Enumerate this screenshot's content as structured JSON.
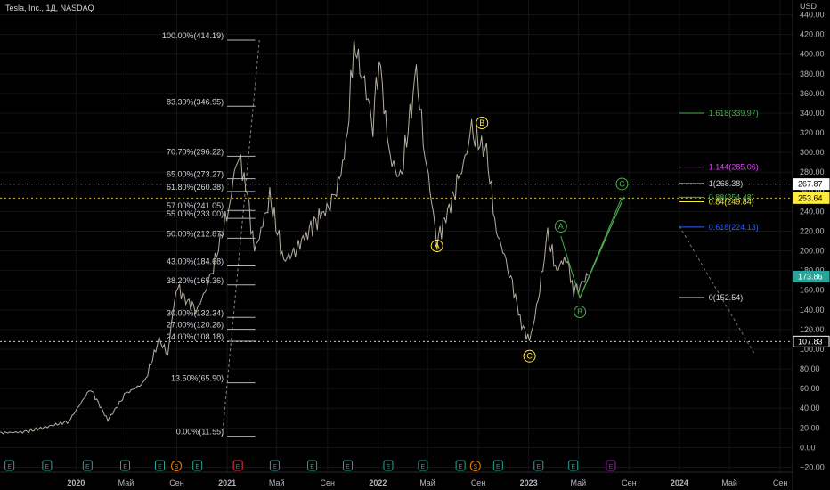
{
  "header": {
    "title": "Tesla, Inc., 1Д, NASDAQ"
  },
  "chart_data": {
    "type": "line",
    "title": "Tesla, Inc., 1Д, NASDAQ",
    "currency_label": "USD",
    "ylim": [
      -25,
      455
    ],
    "y_ticks": [
      -20,
      0,
      20,
      40,
      60,
      80,
      100,
      120,
      140,
      160,
      180,
      200,
      220,
      240,
      260,
      280,
      300,
      320,
      340,
      360,
      380,
      400,
      420,
      440
    ],
    "y_tick_labels": [
      "−20.00",
      "0.00",
      "20.00",
      "40.00",
      "60.00",
      "80.00",
      "100.00",
      "120.00",
      "140.00",
      "160.00",
      "180.00",
      "200.00",
      "220.00",
      "240.00",
      "260.00",
      "280.00",
      "300.00",
      "320.00",
      "340.00",
      "360.00",
      "380.00",
      "400.00",
      "420.00",
      "440.00"
    ],
    "x_range": [
      "2019-07-01",
      "2024-10-01"
    ],
    "x_ticks": [
      {
        "date": "2020-01-01",
        "label": "2020",
        "bold": true
      },
      {
        "date": "2020-05-01",
        "label": "Май",
        "bold": false
      },
      {
        "date": "2020-09-01",
        "label": "Сен",
        "bold": false
      },
      {
        "date": "2021-01-01",
        "label": "2021",
        "bold": true
      },
      {
        "date": "2021-05-01",
        "label": "Май",
        "bold": false
      },
      {
        "date": "2021-09-01",
        "label": "Сен",
        "bold": false
      },
      {
        "date": "2022-01-01",
        "label": "2022",
        "bold": true
      },
      {
        "date": "2022-05-01",
        "label": "Май",
        "bold": false
      },
      {
        "date": "2022-09-01",
        "label": "Сен",
        "bold": false
      },
      {
        "date": "2023-01-01",
        "label": "2023",
        "bold": true
      },
      {
        "date": "2023-05-01",
        "label": "Май",
        "bold": false
      },
      {
        "date": "2023-09-01",
        "label": "Сен",
        "bold": false
      },
      {
        "date": "2024-01-01",
        "label": "2024",
        "bold": true
      },
      {
        "date": "2024-05-01",
        "label": "Май",
        "bold": false
      },
      {
        "date": "2024-09-01",
        "label": "Сен",
        "bold": false
      }
    ],
    "grid": true,
    "series": [
      {
        "x": [
          "2019-07-01",
          "2019-09-01",
          "2019-11-01",
          "2019-12-15",
          "2020-02-05",
          "2020-03-18",
          "2020-05-01",
          "2020-06-15",
          "2020-07-20",
          "2020-08-10",
          "2020-08-31",
          "2020-09-23",
          "2020-10-20",
          "2020-11-20",
          "2020-12-15",
          "2021-01-08",
          "2021-01-26",
          "2021-02-15",
          "2021-03-08",
          "2021-04-01",
          "2021-04-14",
          "2021-05-18",
          "2021-06-15",
          "2021-07-15",
          "2021-08-15",
          "2021-09-15",
          "2021-10-15",
          "2021-11-04",
          "2021-11-22",
          "2021-12-20",
          "2022-01-04",
          "2022-01-27",
          "2022-02-24",
          "2022-04-04",
          "2022-04-25",
          "2022-05-24",
          "2022-06-15",
          "2022-07-15",
          "2022-08-16",
          "2022-09-21",
          "2022-10-15",
          "2022-11-15",
          "2022-12-15",
          "2023-01-03",
          "2023-01-20",
          "2023-02-16",
          "2023-03-10",
          "2023-04-01",
          "2023-04-20",
          "2023-05-05",
          "2023-05-25"
        ],
        "values": [
          15,
          16,
          22,
          27,
          60,
          28,
          55,
          66,
          110,
          95,
          165,
          150,
          140,
          170,
          210,
          250,
          300,
          270,
          200,
          230,
          255,
          190,
          200,
          220,
          235,
          250,
          300,
          409,
          385,
          330,
          400,
          300,
          270,
          380,
          300,
          210,
          235,
          270,
          320,
          300,
          220,
          180,
          125,
          108,
          140,
          215,
          180,
          195,
          160,
          165,
          175
        ]
      }
    ],
    "fib_retracement": [
      {
        "label": "100.00%(414.19)",
        "value": 414.19
      },
      {
        "label": "83.30%(346.95)",
        "value": 346.95
      },
      {
        "label": "70.70%(296.22)",
        "value": 296.22
      },
      {
        "label": "65.00%(273.27)",
        "value": 273.27
      },
      {
        "label": "61.80%(260.38)",
        "value": 260.38
      },
      {
        "label": "57.00%(241.05)",
        "value": 241.05
      },
      {
        "label": "55.00%(233.00)",
        "value": 233.0
      },
      {
        "label": "50.00%(212.87)",
        "value": 212.87
      },
      {
        "label": "43.00%(184.68)",
        "value": 184.68
      },
      {
        "label": "38.20%(165.36)",
        "value": 165.36
      },
      {
        "label": "30.00%(132.34)",
        "value": 132.34
      },
      {
        "label": "27.00%(120.26)",
        "value": 120.26
      },
      {
        "label": "24.00%(108.18)",
        "value": 108.18
      },
      {
        "label": "13.50%(65.90)",
        "value": 65.9
      },
      {
        "label": "0.00%(11.55)",
        "value": 11.55
      }
    ],
    "fib_extension": [
      {
        "label": "1.618(339.97)",
        "value": 339.97,
        "color": "#4caf50"
      },
      {
        "label": "1.144(285.06)",
        "value": 285.06,
        "color": "#e040fb"
      },
      {
        "label": "1(268.38)",
        "value": 268.38,
        "color": "#d1d4dc"
      },
      {
        "label": "0.88(254.48)",
        "value": 254.48,
        "color": "#4caf50"
      },
      {
        "label": "0.84(249.84)",
        "value": 249.84,
        "color": "#ffeb3b"
      },
      {
        "label": "0.618(224.13)",
        "value": 224.13,
        "color": "#2962ff"
      },
      {
        "label": "0(152.54)",
        "value": 152.54,
        "color": "#d1d4dc"
      }
    ],
    "horizontal_lines": [
      {
        "value": 267.87,
        "label": "267.87",
        "color": "#ffffff",
        "text_color": "#000000"
      },
      {
        "value": 253.64,
        "label": "253.64",
        "color": "#ffeb3b",
        "text_color": "#000000"
      },
      {
        "value": 107.83,
        "label": "107.83",
        "color": "#ffffff",
        "text_color": "#ffffff"
      }
    ],
    "last_price": {
      "value": 173.86,
      "label": "173.86",
      "color": "#26a69a"
    },
    "wave_labels": [
      {
        "label": "A",
        "date": "2022-05-24",
        "value": 205,
        "color": "#ffeb3b"
      },
      {
        "label": "B",
        "date": "2022-09-10",
        "value": 330,
        "color": "#ffeb3b"
      },
      {
        "label": "C",
        "date": "2023-01-03",
        "value": 93,
        "color": "#ffeb3b"
      },
      {
        "label": "A",
        "date": "2023-03-20",
        "value": 225,
        "color": "#4caf50"
      },
      {
        "label": "B",
        "date": "2023-05-05",
        "value": 138,
        "color": "#4caf50"
      },
      {
        "label": "C",
        "date": "2023-08-15",
        "value": 268,
        "color": "#4caf50"
      }
    ],
    "projection": {
      "x": [
        "2023-05-05",
        "2023-08-20"
      ],
      "values": [
        152.54,
        255
      ],
      "color": "#4caf50"
    },
    "events": [
      {
        "date": "2019-07-24",
        "label": "E",
        "color": "#26a69a"
      },
      {
        "date": "2019-10-23",
        "label": "E",
        "color": "#26a69a"
      },
      {
        "date": "2020-01-29",
        "label": "E",
        "color": "#26a69a"
      },
      {
        "date": "2020-04-29",
        "label": "E",
        "color": "#26a69a"
      },
      {
        "date": "2020-07-22",
        "label": "E",
        "color": "#26a69a"
      },
      {
        "date": "2020-08-31",
        "label": "S",
        "color": "#f57c00"
      },
      {
        "date": "2020-10-21",
        "label": "E",
        "color": "#26a69a"
      },
      {
        "date": "2021-01-27",
        "label": "E",
        "color": "#f23645"
      },
      {
        "date": "2021-04-26",
        "label": "E",
        "color": "#26a69a"
      },
      {
        "date": "2021-07-26",
        "label": "E",
        "color": "#26a69a"
      },
      {
        "date": "2021-10-20",
        "label": "E",
        "color": "#26a69a"
      },
      {
        "date": "2022-01-26",
        "label": "E",
        "color": "#26a69a"
      },
      {
        "date": "2022-04-20",
        "label": "E",
        "color": "#26a69a"
      },
      {
        "date": "2022-07-20",
        "label": "E",
        "color": "#26a69a"
      },
      {
        "date": "2022-08-25",
        "label": "S",
        "color": "#f57c00"
      },
      {
        "date": "2022-10-19",
        "label": "E",
        "color": "#26a69a"
      },
      {
        "date": "2023-01-25",
        "label": "E",
        "color": "#26a69a"
      },
      {
        "date": "2023-04-19",
        "label": "E",
        "color": "#26a69a"
      },
      {
        "date": "2023-07-19",
        "label": "E",
        "color": "#9c27b0"
      }
    ],
    "colors": {
      "background": "#000000",
      "price": "#c8c2b0",
      "grid": "#141414",
      "fib": "#d1d4dc",
      "axis_text": "#b2b5be"
    }
  }
}
